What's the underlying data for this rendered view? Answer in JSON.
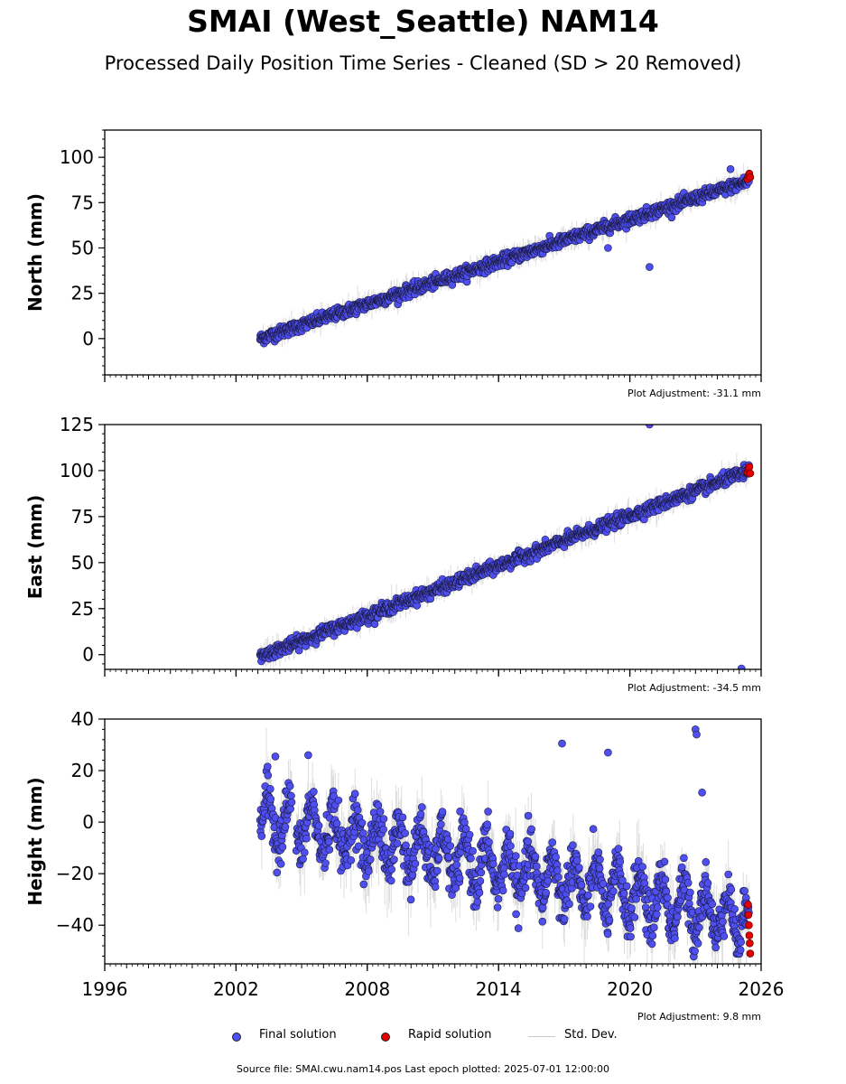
{
  "title": "SMAI (West_Seattle) NAM14",
  "subtitle": "Processed Daily Position Time Series - Cleaned (SD > 20 Removed)",
  "legend": {
    "final_label": "Final solution",
    "rapid_label": "Rapid solution",
    "sd_label": "Std. Dev."
  },
  "source_text": "Source file: SMAI.cwu.nam14.pos  Last epoch plotted: 2025-07-01 12:00:00",
  "colors": {
    "final": "#4f4ff0",
    "rapid": "#e20000",
    "stddev": "#c8c8c8",
    "marker_edge": "#1a1a40"
  },
  "chart_data": [
    {
      "type": "scatter",
      "ylabel": "North (mm)",
      "xlim": [
        1996,
        2026
      ],
      "ylim": [
        -20,
        115
      ],
      "yticks": [
        0,
        25,
        50,
        75,
        100
      ],
      "adjustment": "Plot Adjustment: -31.1 mm",
      "grid": false,
      "trend": {
        "start_year": 2003.1,
        "start_value": 0,
        "end_year": 2025.45,
        "end_value": 87
      },
      "noise_mm": 1.6,
      "outliers": [
        {
          "x": 2020.9,
          "y": 39.5
        },
        {
          "x": 2019.0,
          "y": 50
        },
        {
          "x": 2024.6,
          "y": 93.5
        }
      ],
      "rapid_points": [
        {
          "x": 2025.38,
          "y": 88
        },
        {
          "x": 2025.42,
          "y": 90
        },
        {
          "x": 2025.46,
          "y": 91
        },
        {
          "x": 2025.5,
          "y": 89
        }
      ]
    },
    {
      "type": "scatter",
      "ylabel": "East (mm)",
      "xlim": [
        1996,
        2026
      ],
      "ylim": [
        -8,
        125
      ],
      "yticks": [
        0,
        25,
        50,
        75,
        100,
        125
      ],
      "adjustment": "Plot Adjustment: -34.5 mm",
      "grid": false,
      "trend": {
        "start_year": 2003.1,
        "start_value": -1,
        "end_year": 2025.45,
        "end_value": 100
      },
      "noise_mm": 1.6,
      "outliers": [
        {
          "x": 2020.9,
          "y": 125
        },
        {
          "x": 2025.1,
          "y": -7.5
        }
      ],
      "rapid_points": [
        {
          "x": 2025.38,
          "y": 99
        },
        {
          "x": 2025.42,
          "y": 101
        },
        {
          "x": 2025.46,
          "y": 102
        },
        {
          "x": 2025.5,
          "y": 98.5
        }
      ]
    },
    {
      "type": "scatter",
      "ylabel": "Height (mm)",
      "xlabel": "",
      "xlim": [
        1996,
        2026
      ],
      "ylim": [
        -55,
        40
      ],
      "yticks": [
        -40,
        -20,
        0,
        20,
        40
      ],
      "xticks": [
        1996,
        2002,
        2008,
        2014,
        2020,
        2026
      ],
      "adjustment": "Plot Adjustment: 9.8 mm",
      "grid": false,
      "trend": {
        "start_year": 2003.1,
        "start_value": 2,
        "end_year": 2025.45,
        "end_value": -38
      },
      "seasonal_amplitude_mm": 9,
      "noise_mm": 4.5,
      "outliers": [
        {
          "x": 2003.8,
          "y": 25.5
        },
        {
          "x": 2016.9,
          "y": 30.5
        },
        {
          "x": 2019.0,
          "y": 27
        },
        {
          "x": 2023.0,
          "y": 36
        },
        {
          "x": 2023.05,
          "y": 34
        },
        {
          "x": 2023.3,
          "y": 11.5
        },
        {
          "x": 2005.3,
          "y": 26
        }
      ],
      "rapid_points": [
        {
          "x": 2025.4,
          "y": -32
        },
        {
          "x": 2025.42,
          "y": -36
        },
        {
          "x": 2025.44,
          "y": -40
        },
        {
          "x": 2025.46,
          "y": -44
        },
        {
          "x": 2025.48,
          "y": -47
        },
        {
          "x": 2025.5,
          "y": -51
        }
      ]
    }
  ]
}
